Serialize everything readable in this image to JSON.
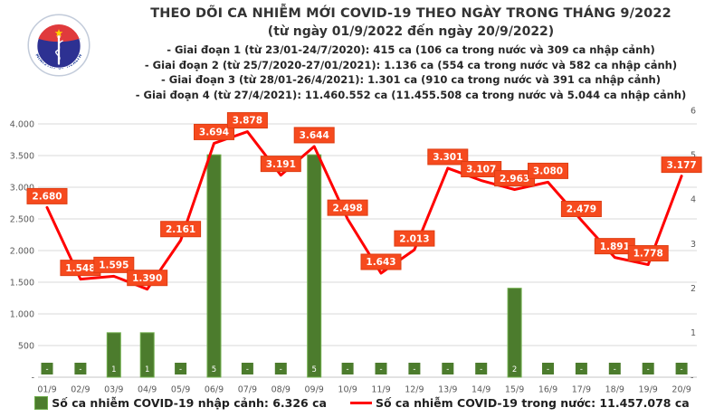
{
  "logo": {
    "top_text": "BỘ Y TẾ",
    "bottom_text": "MINISTRY OF HEALTH"
  },
  "header": {
    "title": "THEO DÕI CA NHIỄM MỚI COVID-19 THEO NGÀY TRONG THÁNG 9/2022",
    "subtitle": "(từ ngày 01/9/2022 đến ngày 20/9/2022)",
    "phases": [
      "- Giai đoạn 1 (từ 23/01-24/7/2020): 415 ca (106 ca trong nước và 309 ca nhập cảnh)",
      "- Giai đoạn 2 (từ 25/7/2020-27/01/2021): 1.136 ca (554 ca trong nước và 582 ca nhập cảnh)",
      "- Giai đoạn 3 (từ 28/01-26/4/2021): 1.301 ca (910 ca trong nước và 391 ca nhập cảnh)",
      "- Giai đoạn 4 (từ 27/4/2021): 11.460.552 ca (11.455.508 ca trong nước và 5.044 ca nhập cảnh)"
    ]
  },
  "chart_data": {
    "type": "combo",
    "title": "THEO DÕI CA NHIỄM MỚI COVID-19 THEO NGÀY TRONG THÁNG 9/2022",
    "categories": [
      "01/9",
      "02/9",
      "03/9",
      "04/9",
      "05/9",
      "06/9",
      "07/9",
      "08/9",
      "09/9",
      "10/9",
      "11/9",
      "12/9",
      "13/9",
      "14/9",
      "15/9",
      "16/9",
      "17/9",
      "18/9",
      "19/9",
      "20/9"
    ],
    "series": [
      {
        "name": "Số ca nhiễm COVID-19 nhập cảnh",
        "type": "bar",
        "axis": "right",
        "values": [
          0,
          0,
          1,
          1,
          0,
          5,
          0,
          0,
          5,
          0,
          0,
          0,
          0,
          0,
          2,
          0,
          0,
          0,
          0,
          0
        ],
        "labels": [
          "-",
          "-",
          "1",
          "1",
          "-",
          "5",
          "-",
          "-",
          "5",
          "-",
          "-",
          "-",
          "-",
          "-",
          "2",
          "-",
          "-",
          "-",
          "-",
          "-"
        ]
      },
      {
        "name": "Số ca nhiễm COVID-19 trong nước",
        "type": "line",
        "axis": "left",
        "values": [
          2680,
          1548,
          1595,
          1390,
          2161,
          3694,
          3878,
          3191,
          3644,
          2498,
          1643,
          2013,
          3301,
          3107,
          2963,
          3080,
          2479,
          1891,
          1778,
          3177
        ],
        "labels": [
          "2.680",
          "1.548",
          "1.595",
          "1.390",
          "2.161",
          "3.694",
          "3.878",
          "3.191",
          "3.644",
          "2.498",
          "1.643",
          "2.013",
          "3.301",
          "3.107",
          "2.963",
          "3.080",
          "2.479",
          "1.891",
          "1.778",
          "3.177"
        ]
      }
    ],
    "left_axis": {
      "min": 0,
      "max": 4000,
      "step": 500,
      "ticks": [
        "-",
        "500",
        "1.000",
        "1.500",
        "2.000",
        "2.500",
        "3.000",
        "3.500",
        "4.000"
      ]
    },
    "right_axis": {
      "min": 0,
      "max": 6,
      "step": 1,
      "ticks": [
        "-",
        "1",
        "2",
        "3",
        "4",
        "5",
        "6"
      ]
    },
    "grid": true,
    "legend_position": "bottom"
  },
  "legend": [
    {
      "label": "Số ca nhiễm COVID-19 nhập cảnh: 6.326 ca",
      "marker": "square-icon",
      "color": "#4c7c2d"
    },
    {
      "label": "Số ca nhiễm COVID-19 trong nước: 11.457.078 ca",
      "marker": "line-icon",
      "color": "#ff0000"
    }
  ],
  "colors": {
    "line": "#ff0000",
    "point_label_bg": "#f64a1e",
    "point_label_border": "#de3d12",
    "bar_fill": "#4c7c2d",
    "bar_border": "#6fae4b",
    "grid": "#d9d9d9",
    "baseline": "#c6c6c6",
    "axis_text": "#595959"
  }
}
